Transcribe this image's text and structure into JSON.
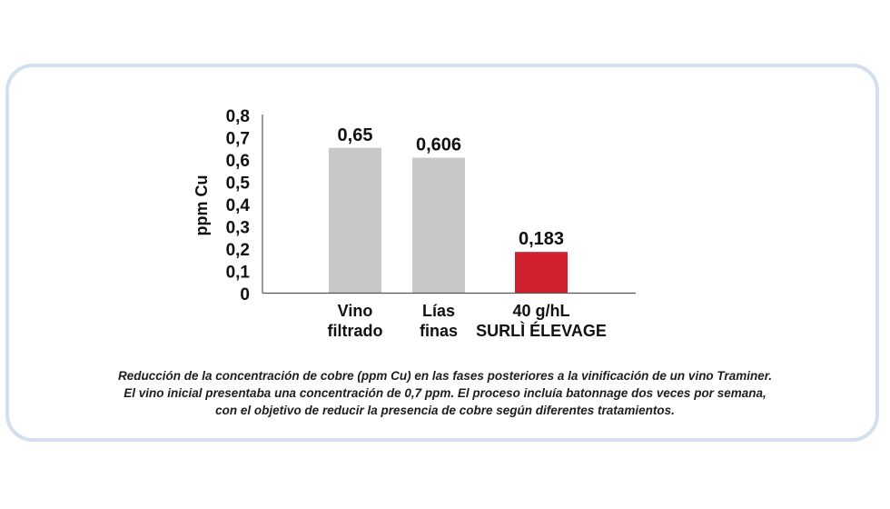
{
  "chart_data": {
    "type": "bar",
    "categories": [
      [
        "Vino",
        "filtrado"
      ],
      [
        "Lías",
        "finas"
      ],
      [
        "40 g/hL",
        "SURLÌ ÉLEVAGE"
      ]
    ],
    "values": [
      0.65,
      0.606,
      0.183
    ],
    "data_labels": [
      "0,65",
      "0,606",
      "0,183"
    ],
    "ylabel": "ppm Cu",
    "ylim": [
      0,
      0.8
    ],
    "yticks": [
      {
        "value": 0,
        "label": "0"
      },
      {
        "value": 0.1,
        "label": "0,1"
      },
      {
        "value": 0.2,
        "label": "0,2"
      },
      {
        "value": 0.3,
        "label": "0,3"
      },
      {
        "value": 0.4,
        "label": "0,4"
      },
      {
        "value": 0.5,
        "label": "0,5"
      },
      {
        "value": 0.6,
        "label": "0,6"
      },
      {
        "value": 0.7,
        "label": "0,7"
      },
      {
        "value": 0.8,
        "label": "0,8"
      }
    ],
    "bar_colors": [
      "#c8c8c8",
      "#c8c8c8",
      "#d0202e"
    ],
    "grid": false,
    "legend": "none"
  },
  "caption": [
    "Reducción de la concentración de cobre (ppm Cu) en las fases posteriores a la vinificación de un vino Traminer.",
    "El vino inicial presentaba una concentración de 0,7 ppm. El proceso incluía batonnage dos veces por semana,",
    "con el objetivo de reducir la presencia de cobre según diferentes tratamientos."
  ],
  "colors": {
    "card_border": "#d3deee",
    "axis": "#555555",
    "text": "#111111"
  }
}
